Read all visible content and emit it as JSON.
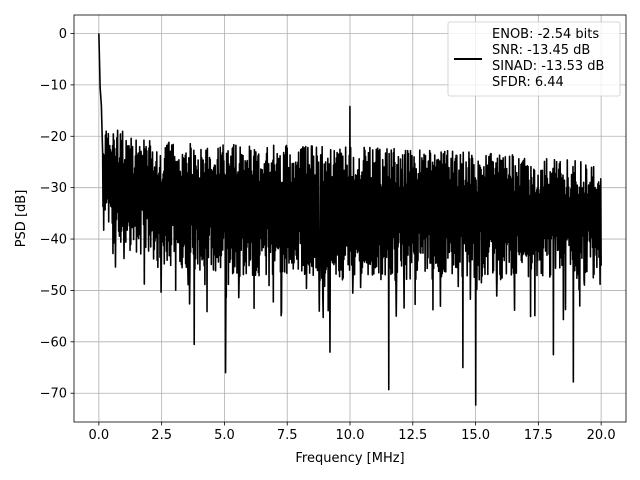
{
  "chart_data": {
    "type": "line",
    "title": "",
    "xlabel": "Frequency [MHz]",
    "ylabel": "PSD [dB]",
    "xlim": [
      -0.99,
      20.99
    ],
    "ylim": [
      -75.6,
      3.6
    ],
    "xticks": [
      0.0,
      2.5,
      5.0,
      7.5,
      10.0,
      12.5,
      15.0,
      17.5,
      20.0
    ],
    "xtick_labels": [
      "0.0",
      "2.5",
      "5.0",
      "7.5",
      "10.0",
      "12.5",
      "15.0",
      "17.5",
      "20.0"
    ],
    "yticks": [
      0,
      -10,
      -20,
      -30,
      -40,
      -50,
      -60,
      -70
    ],
    "ytick_labels": [
      "0",
      "−10",
      "−20",
      "−30",
      "−40",
      "−50",
      "−60",
      "−70"
    ],
    "grid": true,
    "legend_position": "top-right",
    "series": [
      {
        "color": "#000000",
        "peaks": [
          {
            "x": 0.0,
            "y": 0.0
          },
          {
            "x": 0.05,
            "y": -10.5
          },
          {
            "x": 0.1,
            "y": -14.0
          },
          {
            "x": 10.0,
            "y": -14.2
          }
        ],
        "upper_envelope": [
          [
            0.2,
            -18
          ],
          [
            2.5,
            -21
          ],
          [
            5.0,
            -21.5
          ],
          [
            10.0,
            -22
          ],
          [
            15.0,
            -23
          ],
          [
            20.0,
            -25
          ]
        ],
        "lower_envelope": [
          [
            0.2,
            -40
          ],
          [
            2.5,
            -45
          ],
          [
            5.0,
            -47
          ],
          [
            10.0,
            -48
          ],
          [
            15.0,
            -48
          ],
          [
            20.0,
            -48
          ]
        ],
        "dips": [
          {
            "x": 3.8,
            "y": -60.5
          },
          {
            "x": 5.05,
            "y": -66.0
          },
          {
            "x": 9.2,
            "y": -62.0
          },
          {
            "x": 11.55,
            "y": -69.3
          },
          {
            "x": 14.5,
            "y": -65.0
          },
          {
            "x": 15.0,
            "y": -72.3
          },
          {
            "x": 18.9,
            "y": -67.8
          },
          {
            "x": 18.1,
            "y": -62.5
          }
        ]
      }
    ],
    "legend": [
      "ENOB: -2.54 bits",
      "SNR: -13.45 dB",
      "SINAD: -13.53 dB",
      "SFDR: 6.44"
    ]
  }
}
